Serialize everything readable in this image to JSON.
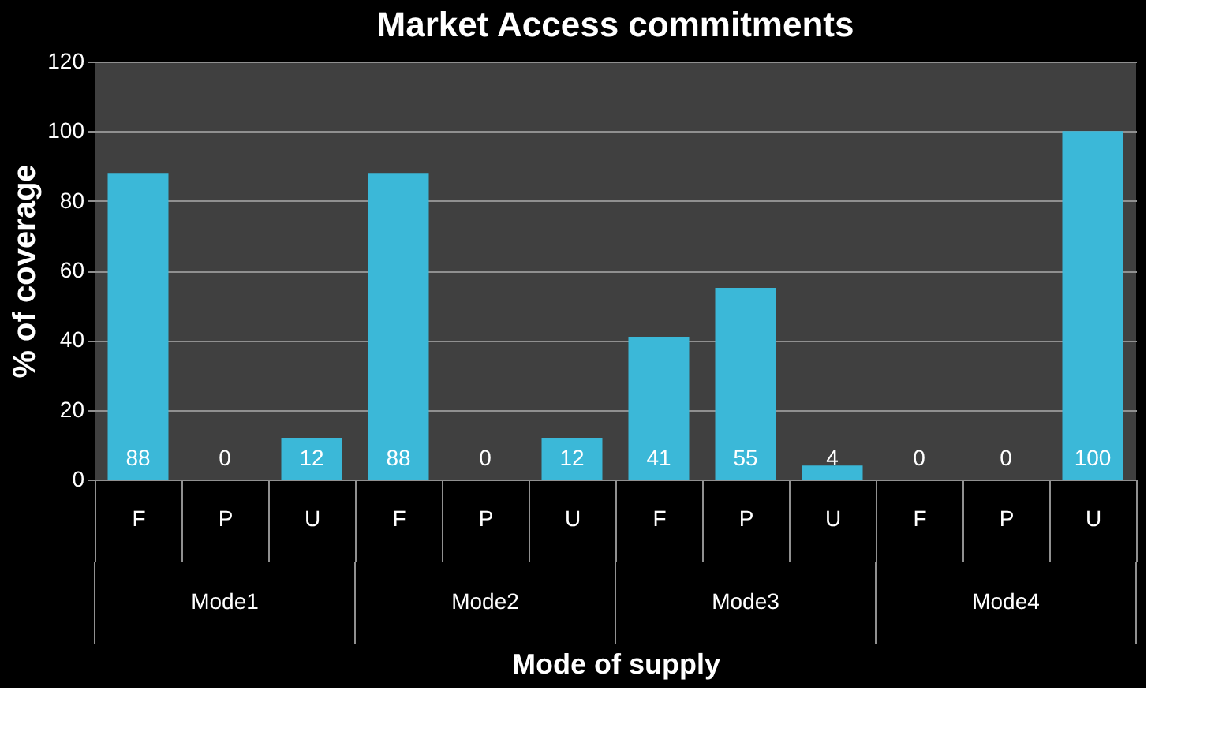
{
  "chart_data": {
    "type": "bar",
    "title": "Market Access commitments",
    "xlabel": "Mode of supply",
    "ylabel": "% of coverage",
    "categories": [
      "F",
      "P",
      "U",
      "F",
      "P",
      "U",
      "F",
      "P",
      "U",
      "F",
      "P",
      "U"
    ],
    "values": [
      88,
      0,
      12,
      88,
      0,
      12,
      41,
      55,
      4,
      0,
      0,
      100
    ],
    "color": "#3bb8d8",
    "ylim": [
      0,
      120
    ],
    "yticks": [
      0,
      20,
      40,
      60,
      80,
      100,
      120
    ],
    "grid": "y",
    "data_labels": true,
    "annotations": [
      "Mode1",
      "Mode2",
      "Mode3",
      "Mode4"
    ]
  }
}
